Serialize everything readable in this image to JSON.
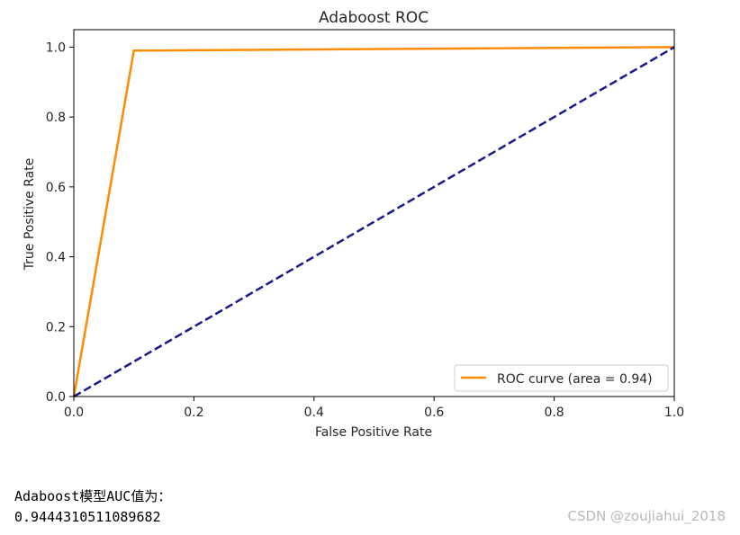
{
  "chart_data": {
    "type": "line",
    "title": "Adaboost ROC",
    "xlabel": "False Positive Rate",
    "ylabel": "True Positive Rate",
    "xlim": [
      0.0,
      1.0
    ],
    "ylim": [
      0.0,
      1.05
    ],
    "xticks": [
      "0.0",
      "0.2",
      "0.4",
      "0.6",
      "0.8",
      "1.0"
    ],
    "yticks": [
      "0.0",
      "0.2",
      "0.4",
      "0.6",
      "0.8",
      "1.0"
    ],
    "grid": false,
    "legend_position": "lower-right",
    "series": [
      {
        "name": "ROC curve (area = 0.94)",
        "color": "#ff8c00",
        "style": "solid",
        "x": [
          0.0,
          0.1,
          1.0
        ],
        "y": [
          0.0,
          0.99,
          1.0
        ]
      },
      {
        "color": "#1a1a8c",
        "style": "dashed",
        "x": [
          0.0,
          1.0
        ],
        "y": [
          0.0,
          1.0
        ]
      }
    ]
  },
  "output": {
    "line1": "Adaboost模型AUC值为：",
    "line2": "0.9444310511089682"
  },
  "watermark": "CSDN @zoujiahui_2018"
}
